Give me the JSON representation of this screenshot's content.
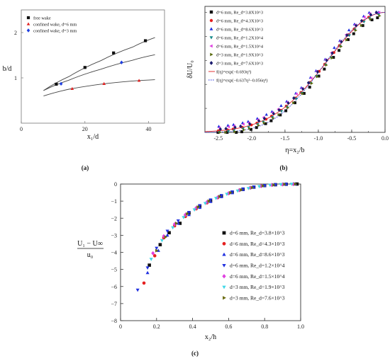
{
  "chart_data": [
    {
      "panel": "(a)",
      "type": "scatter",
      "xlabel": "x₁/d",
      "ylabel": "b/d",
      "xlim": [
        0,
        45
      ],
      "ylim": [
        0,
        2.5
      ],
      "x_ticks": [
        "0",
        "20",
        "40"
      ],
      "x_tick_values": [
        0,
        20,
        40
      ],
      "y_ticks": [
        "1",
        "2"
      ],
      "y_tick_values": [
        1,
        2
      ],
      "series": [
        {
          "name": "free wake",
          "marker": "square",
          "color": "#111111",
          "x": [
            11,
            20,
            29,
            39
          ],
          "y": [
            0.86,
            1.23,
            1.55,
            1.82
          ]
        },
        {
          "name": "confined wake, d=6 mm",
          "marker": "triangle",
          "color": "#e02020",
          "x": [
            16,
            26,
            37
          ],
          "y": [
            0.76,
            0.87,
            0.94
          ]
        },
        {
          "name": "confined wake, d=3 mm",
          "marker": "diamond",
          "color": "#1f3fe0",
          "x": [
            12.5,
            31.5
          ],
          "y": [
            0.87,
            1.34
          ]
        }
      ],
      "fit_curves": [
        {
          "x": [
            7,
            15,
            25,
            35,
            42
          ],
          "y": [
            0.72,
            1.03,
            1.38,
            1.68,
            1.89
          ]
        },
        {
          "x": [
            7,
            15,
            25,
            35,
            42
          ],
          "y": [
            0.72,
            0.95,
            1.19,
            1.39,
            1.51
          ]
        },
        {
          "x": [
            7,
            15,
            25,
            35,
            42
          ],
          "y": [
            0.6,
            0.75,
            0.86,
            0.93,
            0.96
          ]
        }
      ],
      "legend_position": "top-left"
    },
    {
      "panel": "(b)",
      "type": "scatter",
      "xlabel": "η=x₂/b",
      "ylabel": "δU/U₀",
      "xlim": [
        -2.7,
        0
      ],
      "ylim": [
        0,
        1.05
      ],
      "x_ticks": [
        "-2.5",
        "-2.0",
        "-1.5",
        "-1.0",
        "-0.5",
        "0.0"
      ],
      "x_tick_values": [
        -2.5,
        -2.0,
        -1.5,
        -1.0,
        -0.5,
        0.0
      ],
      "y_ticks": [],
      "y_tick_values": [],
      "series": [
        {
          "name": "d=6 mm, Re_d=3.8X10^3",
          "marker": "square",
          "color": "#111111"
        },
        {
          "name": "d=6 mm, Re_d=4.3X10^3",
          "marker": "circle",
          "color": "#e52020"
        },
        {
          "name": "d=6 mm, Re_d=8.6X10^3",
          "marker": "triangle",
          "color": "#2030e0"
        },
        {
          "name": "d=6 mm, Re_d=1.2X10^4",
          "marker": "triangle-down",
          "color": "#168a8a"
        },
        {
          "name": "d=6 mm, Re_d=1.5X10^4",
          "marker": "triangle-left",
          "color": "#e040e0"
        },
        {
          "name": "d=3 mm, Re_d=1.9X10^3",
          "marker": "triangle-right",
          "color": "#5a6b10"
        },
        {
          "name": "d=3 mm, Re_d=7.6X10^3",
          "marker": "diamond",
          "color": "#1a1a6e"
        }
      ],
      "fits": [
        {
          "name": "f(η)=exp(−0.693η²)",
          "style": "solid",
          "color": "#e02020",
          "coef2": -0.693,
          "coef4": 0
        },
        {
          "name": "f(η)=exp(−0.637η²−0.056η⁴)",
          "style": "dotted",
          "color": "#2030e0",
          "coef2": -0.637,
          "coef4": -0.056
        }
      ],
      "legend_position": "top-left"
    },
    {
      "panel": "(c)",
      "type": "scatter",
      "xlabel": "x₂/h",
      "ylabel_num": "U₁ − U∞",
      "ylabel_den": "u₀",
      "xlim": [
        0,
        1
      ],
      "ylim": [
        -8,
        0
      ],
      "x_ticks": [
        "0",
        "0.2",
        "0.4",
        "0.6",
        "0.8",
        "1.0"
      ],
      "x_tick_values": [
        0,
        0.2,
        0.4,
        0.6,
        0.8,
        1.0
      ],
      "y_ticks": [
        "0",
        "−1",
        "−2",
        "−3",
        "−4",
        "−5",
        "−6",
        "−7",
        "−8"
      ],
      "y_tick_values": [
        0,
        -1,
        -2,
        -3,
        -4,
        -5,
        -6,
        -7,
        -8
      ],
      "series": [
        {
          "name": "d=6 mm, Re_d=3.8×10^3",
          "marker": "square",
          "color": "#111111",
          "x": [
            0.16,
            0.22,
            0.27,
            0.33,
            0.38,
            0.44,
            0.5,
            0.56,
            0.62,
            0.68,
            0.74,
            0.8,
            0.86,
            0.92,
            0.98
          ],
          "y": [
            -4.75,
            -3.55,
            -2.85,
            -2.3,
            -1.7,
            -1.3,
            -0.98,
            -0.7,
            -0.48,
            -0.3,
            -0.18,
            -0.09,
            -0.04,
            -0.01,
            0.0
          ]
        },
        {
          "name": "d=6 mm, Re_d=4.3×10^3",
          "marker": "circle",
          "color": "#e52020",
          "x": [
            0.13,
            0.19,
            0.24,
            0.3,
            0.36,
            0.42,
            0.48,
            0.54,
            0.6,
            0.66,
            0.72,
            0.78,
            0.84,
            0.9,
            0.96
          ],
          "y": [
            -5.8,
            -4.2,
            -3.15,
            -2.45,
            -1.9,
            -1.45,
            -1.1,
            -0.8,
            -0.55,
            -0.36,
            -0.22,
            -0.12,
            -0.05,
            -0.02,
            0.0
          ]
        },
        {
          "name": "d=6 mm, Re_d=8.6×10^3",
          "marker": "triangle",
          "color": "#2030e0",
          "x": [
            0.15,
            0.21,
            0.26,
            0.32,
            0.38,
            0.44,
            0.5,
            0.56,
            0.62,
            0.68,
            0.74,
            0.8,
            0.86,
            0.92,
            0.97
          ],
          "y": [
            -5.2,
            -3.9,
            -3.0,
            -2.3,
            -1.8,
            -1.38,
            -1.03,
            -0.75,
            -0.52,
            -0.34,
            -0.2,
            -0.1,
            -0.04,
            -0.01,
            0.0
          ]
        },
        {
          "name": "d=6 mm, Re_d=1.2×10^4",
          "marker": "triangle-down",
          "color": "#2030e0",
          "x": [
            0.095,
            0.15,
            0.2,
            0.26,
            0.32,
            0.38,
            0.44,
            0.5,
            0.56,
            0.62,
            0.68,
            0.74,
            0.8,
            0.86,
            0.92
          ],
          "y": [
            -6.2,
            -4.9,
            -3.75,
            -2.75,
            -2.15,
            -1.65,
            -1.25,
            -0.92,
            -0.66,
            -0.45,
            -0.28,
            -0.16,
            -0.08,
            -0.03,
            0.0
          ]
        },
        {
          "name": "d=6 mm, Re_d=1.5×10^4",
          "marker": "diamond",
          "color": "#e040e0",
          "x": [
            0.18,
            0.24,
            0.3,
            0.36,
            0.42,
            0.48,
            0.54,
            0.6,
            0.66,
            0.72,
            0.78,
            0.84,
            0.9,
            0.96
          ],
          "y": [
            -4.05,
            -3.05,
            -2.35,
            -1.8,
            -1.4,
            -1.05,
            -0.77,
            -0.54,
            -0.36,
            -0.22,
            -0.12,
            -0.05,
            -0.02,
            0.0
          ]
        },
        {
          "name": "d=3 mm, Re_d=1.9×10^3",
          "marker": "triangle-down",
          "color": "#40d8e8",
          "x": [
            0.17,
            0.23,
            0.29,
            0.35,
            0.41,
            0.47,
            0.53,
            0.59,
            0.65,
            0.71,
            0.77,
            0.83,
            0.89,
            0.95
          ],
          "y": [
            -4.4,
            -3.3,
            -2.55,
            -1.95,
            -1.5,
            -1.13,
            -0.83,
            -0.59,
            -0.4,
            -0.25,
            -0.14,
            -0.06,
            -0.02,
            0.0
          ]
        },
        {
          "name": "d=3 mm, Re_d=7.6×10^3",
          "marker": "triangle-right",
          "color": "#6b6b10",
          "x": [
            0.2,
            0.25,
            0.31,
            0.37,
            0.43,
            0.49,
            0.55,
            0.61,
            0.67,
            0.73,
            0.79,
            0.85,
            0.91,
            0.97
          ],
          "y": [
            -3.9,
            -3.1,
            -2.3,
            -1.75,
            -1.35,
            -1.0,
            -0.73,
            -0.51,
            -0.34,
            -0.21,
            -0.11,
            -0.05,
            -0.01,
            0.0
          ]
        }
      ],
      "legend_position": "right"
    }
  ],
  "panel_labels": [
    "(a)",
    "(b)",
    "(c)"
  ]
}
